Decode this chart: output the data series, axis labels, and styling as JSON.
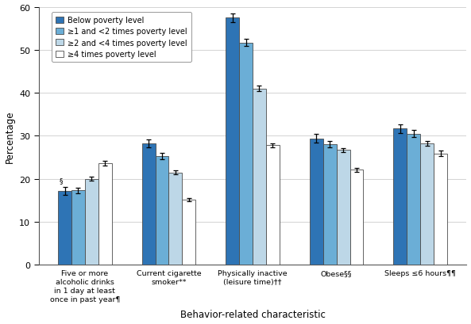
{
  "categories": [
    "Five or more\nalcoholic drinks\nin 1 day at least\nonce in past year¶",
    "Current cigarette\nsmoker**",
    "Physically inactive\n(leisure time)††",
    "Obese§§",
    "Sleeps ≤6 hours¶¶"
  ],
  "series": [
    {
      "label": "Below poverty level",
      "color": "#2e74b5",
      "values": [
        17.2,
        28.3,
        57.5,
        29.4,
        31.7
      ],
      "errors": [
        0.9,
        0.9,
        1.0,
        1.0,
        1.0
      ]
    },
    {
      "label": "≥1 and <2 times poverty level",
      "color": "#6baed6",
      "values": [
        17.3,
        25.3,
        51.7,
        28.1,
        30.5
      ],
      "errors": [
        0.6,
        0.7,
        0.8,
        0.7,
        0.8
      ]
    },
    {
      "label": "≥2 and <4 times poverty level",
      "color": "#bdd7e7",
      "values": [
        20.0,
        21.5,
        41.0,
        26.7,
        28.2
      ],
      "errors": [
        0.5,
        0.5,
        0.6,
        0.5,
        0.6
      ]
    },
    {
      "label": "≥4 times poverty level",
      "color": "#ffffff",
      "values": [
        23.6,
        15.1,
        27.8,
        22.1,
        25.9
      ],
      "errors": [
        0.5,
        0.4,
        0.5,
        0.5,
        0.6
      ]
    }
  ],
  "ylabel": "Percentage",
  "xlabel": "Behavior-related characteristic",
  "ylim": [
    0,
    60
  ],
  "yticks": [
    0,
    10,
    20,
    30,
    40,
    50,
    60
  ],
  "bar_width": 0.16,
  "edge_color": "#4a4a4a",
  "error_color": "#000000",
  "background_color": "#ffffff",
  "grid_color": "#cccccc"
}
